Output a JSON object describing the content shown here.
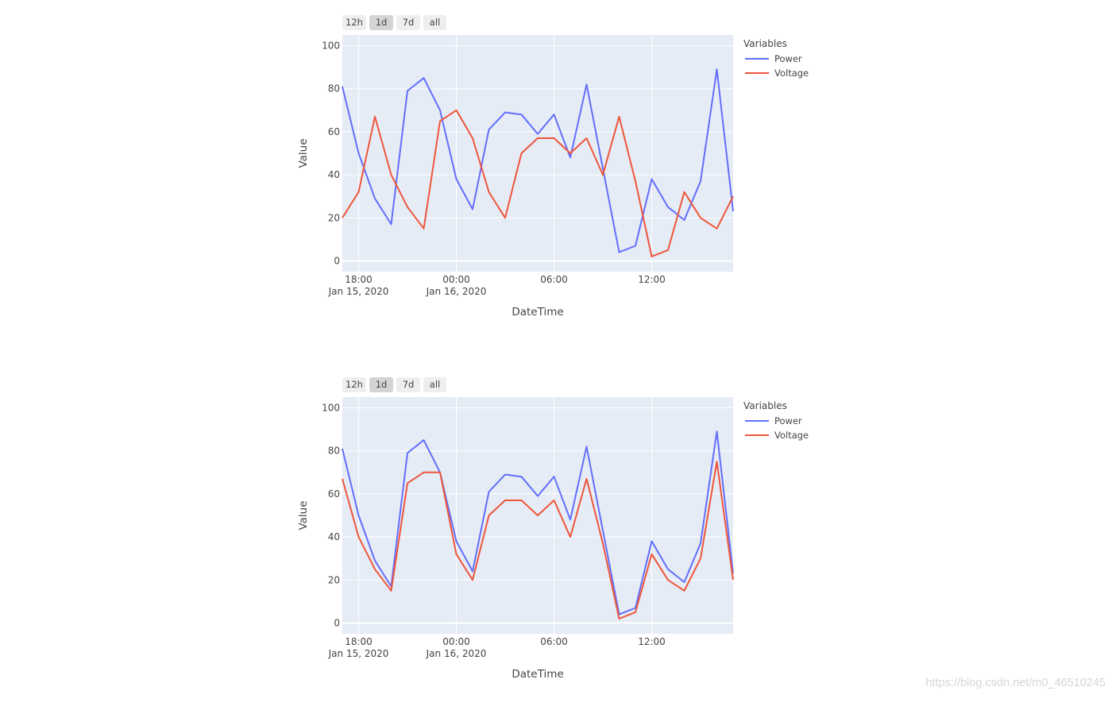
{
  "range_buttons": [
    {
      "label": "12h",
      "active": false
    },
    {
      "label": "1d",
      "active": true
    },
    {
      "label": "7d",
      "active": false
    },
    {
      "label": "all",
      "active": false
    }
  ],
  "legend": {
    "title": "Variables",
    "items": [
      {
        "name": "Power",
        "color": "#636efa"
      },
      {
        "name": "Voltage",
        "color": "#ef553b"
      }
    ]
  },
  "watermark": "https://blog.csdn.net/m0_46510245",
  "chart_data": [
    {
      "type": "line",
      "xlabel": "DateTime",
      "ylabel": "Value",
      "ylim": [
        -5,
        105
      ],
      "yticks": [
        0,
        20,
        40,
        60,
        80,
        100
      ],
      "xlim": [
        "2020-01-15 17:00",
        "2020-01-16 17:00"
      ],
      "xticks": [
        {
          "t": "2020-01-15 18:00",
          "line1": "18:00",
          "line2": "Jan 15, 2020"
        },
        {
          "t": "2020-01-16 00:00",
          "line1": "00:00",
          "line2": "Jan 16, 2020"
        },
        {
          "t": "2020-01-16 06:00",
          "line1": "06:00",
          "line2": ""
        },
        {
          "t": "2020-01-16 12:00",
          "line1": "12:00",
          "line2": ""
        }
      ],
      "grid": true,
      "legend_position": "top-right outside",
      "x": [
        "2020-01-15 17:00",
        "2020-01-15 18:00",
        "2020-01-15 19:00",
        "2020-01-15 20:00",
        "2020-01-15 21:00",
        "2020-01-15 22:00",
        "2020-01-15 23:00",
        "2020-01-16 00:00",
        "2020-01-16 01:00",
        "2020-01-16 02:00",
        "2020-01-16 03:00",
        "2020-01-16 04:00",
        "2020-01-16 05:00",
        "2020-01-16 06:00",
        "2020-01-16 07:00",
        "2020-01-16 08:00",
        "2020-01-16 09:00",
        "2020-01-16 10:00",
        "2020-01-16 11:00",
        "2020-01-16 12:00",
        "2020-01-16 13:00",
        "2020-01-16 14:00",
        "2020-01-16 15:00",
        "2020-01-16 16:00",
        "2020-01-16 17:00"
      ],
      "series": [
        {
          "name": "Power",
          "color": "#636efa",
          "values": [
            81,
            50,
            29,
            17,
            79,
            85,
            70,
            38,
            24,
            61,
            69,
            68,
            59,
            68,
            48,
            82,
            43,
            4,
            7,
            38,
            25,
            19,
            37,
            89,
            23
          ]
        },
        {
          "name": "Voltage",
          "color": "#ef553b",
          "values": [
            20,
            32,
            67,
            40,
            25,
            15,
            65,
            70,
            57,
            32,
            20,
            50,
            57,
            57,
            50,
            57,
            40,
            67,
            37,
            2,
            5,
            32,
            20,
            15,
            30
          ]
        }
      ]
    },
    {
      "type": "line",
      "xlabel": "DateTime",
      "ylabel": "Value",
      "ylim": [
        -5,
        105
      ],
      "yticks": [
        0,
        20,
        40,
        60,
        80,
        100
      ],
      "xlim": [
        "2020-01-15 17:00",
        "2020-01-16 17:00"
      ],
      "xticks": [
        {
          "t": "2020-01-15 18:00",
          "line1": "18:00",
          "line2": "Jan 15, 2020"
        },
        {
          "t": "2020-01-16 00:00",
          "line1": "00:00",
          "line2": "Jan 16, 2020"
        },
        {
          "t": "2020-01-16 06:00",
          "line1": "06:00",
          "line2": ""
        },
        {
          "t": "2020-01-16 12:00",
          "line1": "12:00",
          "line2": ""
        }
      ],
      "grid": true,
      "legend_position": "top-right outside",
      "x": [
        "2020-01-15 17:00",
        "2020-01-15 18:00",
        "2020-01-15 19:00",
        "2020-01-15 20:00",
        "2020-01-15 21:00",
        "2020-01-15 22:00",
        "2020-01-15 23:00",
        "2020-01-16 00:00",
        "2020-01-16 01:00",
        "2020-01-16 02:00",
        "2020-01-16 03:00",
        "2020-01-16 04:00",
        "2020-01-16 05:00",
        "2020-01-16 06:00",
        "2020-01-16 07:00",
        "2020-01-16 08:00",
        "2020-01-16 09:00",
        "2020-01-16 10:00",
        "2020-01-16 11:00",
        "2020-01-16 12:00",
        "2020-01-16 13:00",
        "2020-01-16 14:00",
        "2020-01-16 15:00",
        "2020-01-16 16:00",
        "2020-01-16 17:00"
      ],
      "series": [
        {
          "name": "Power",
          "color": "#636efa",
          "values": [
            81,
            50,
            29,
            17,
            79,
            85,
            70,
            38,
            24,
            61,
            69,
            68,
            59,
            68,
            48,
            82,
            43,
            4,
            7,
            38,
            25,
            19,
            37,
            89,
            23
          ]
        },
        {
          "name": "Voltage",
          "color": "#ef553b",
          "values": [
            67,
            40,
            25,
            15,
            65,
            70,
            70,
            32,
            20,
            50,
            57,
            57,
            50,
            57,
            40,
            67,
            37,
            2,
            5,
            32,
            20,
            15,
            30,
            75,
            20
          ]
        }
      ]
    }
  ]
}
